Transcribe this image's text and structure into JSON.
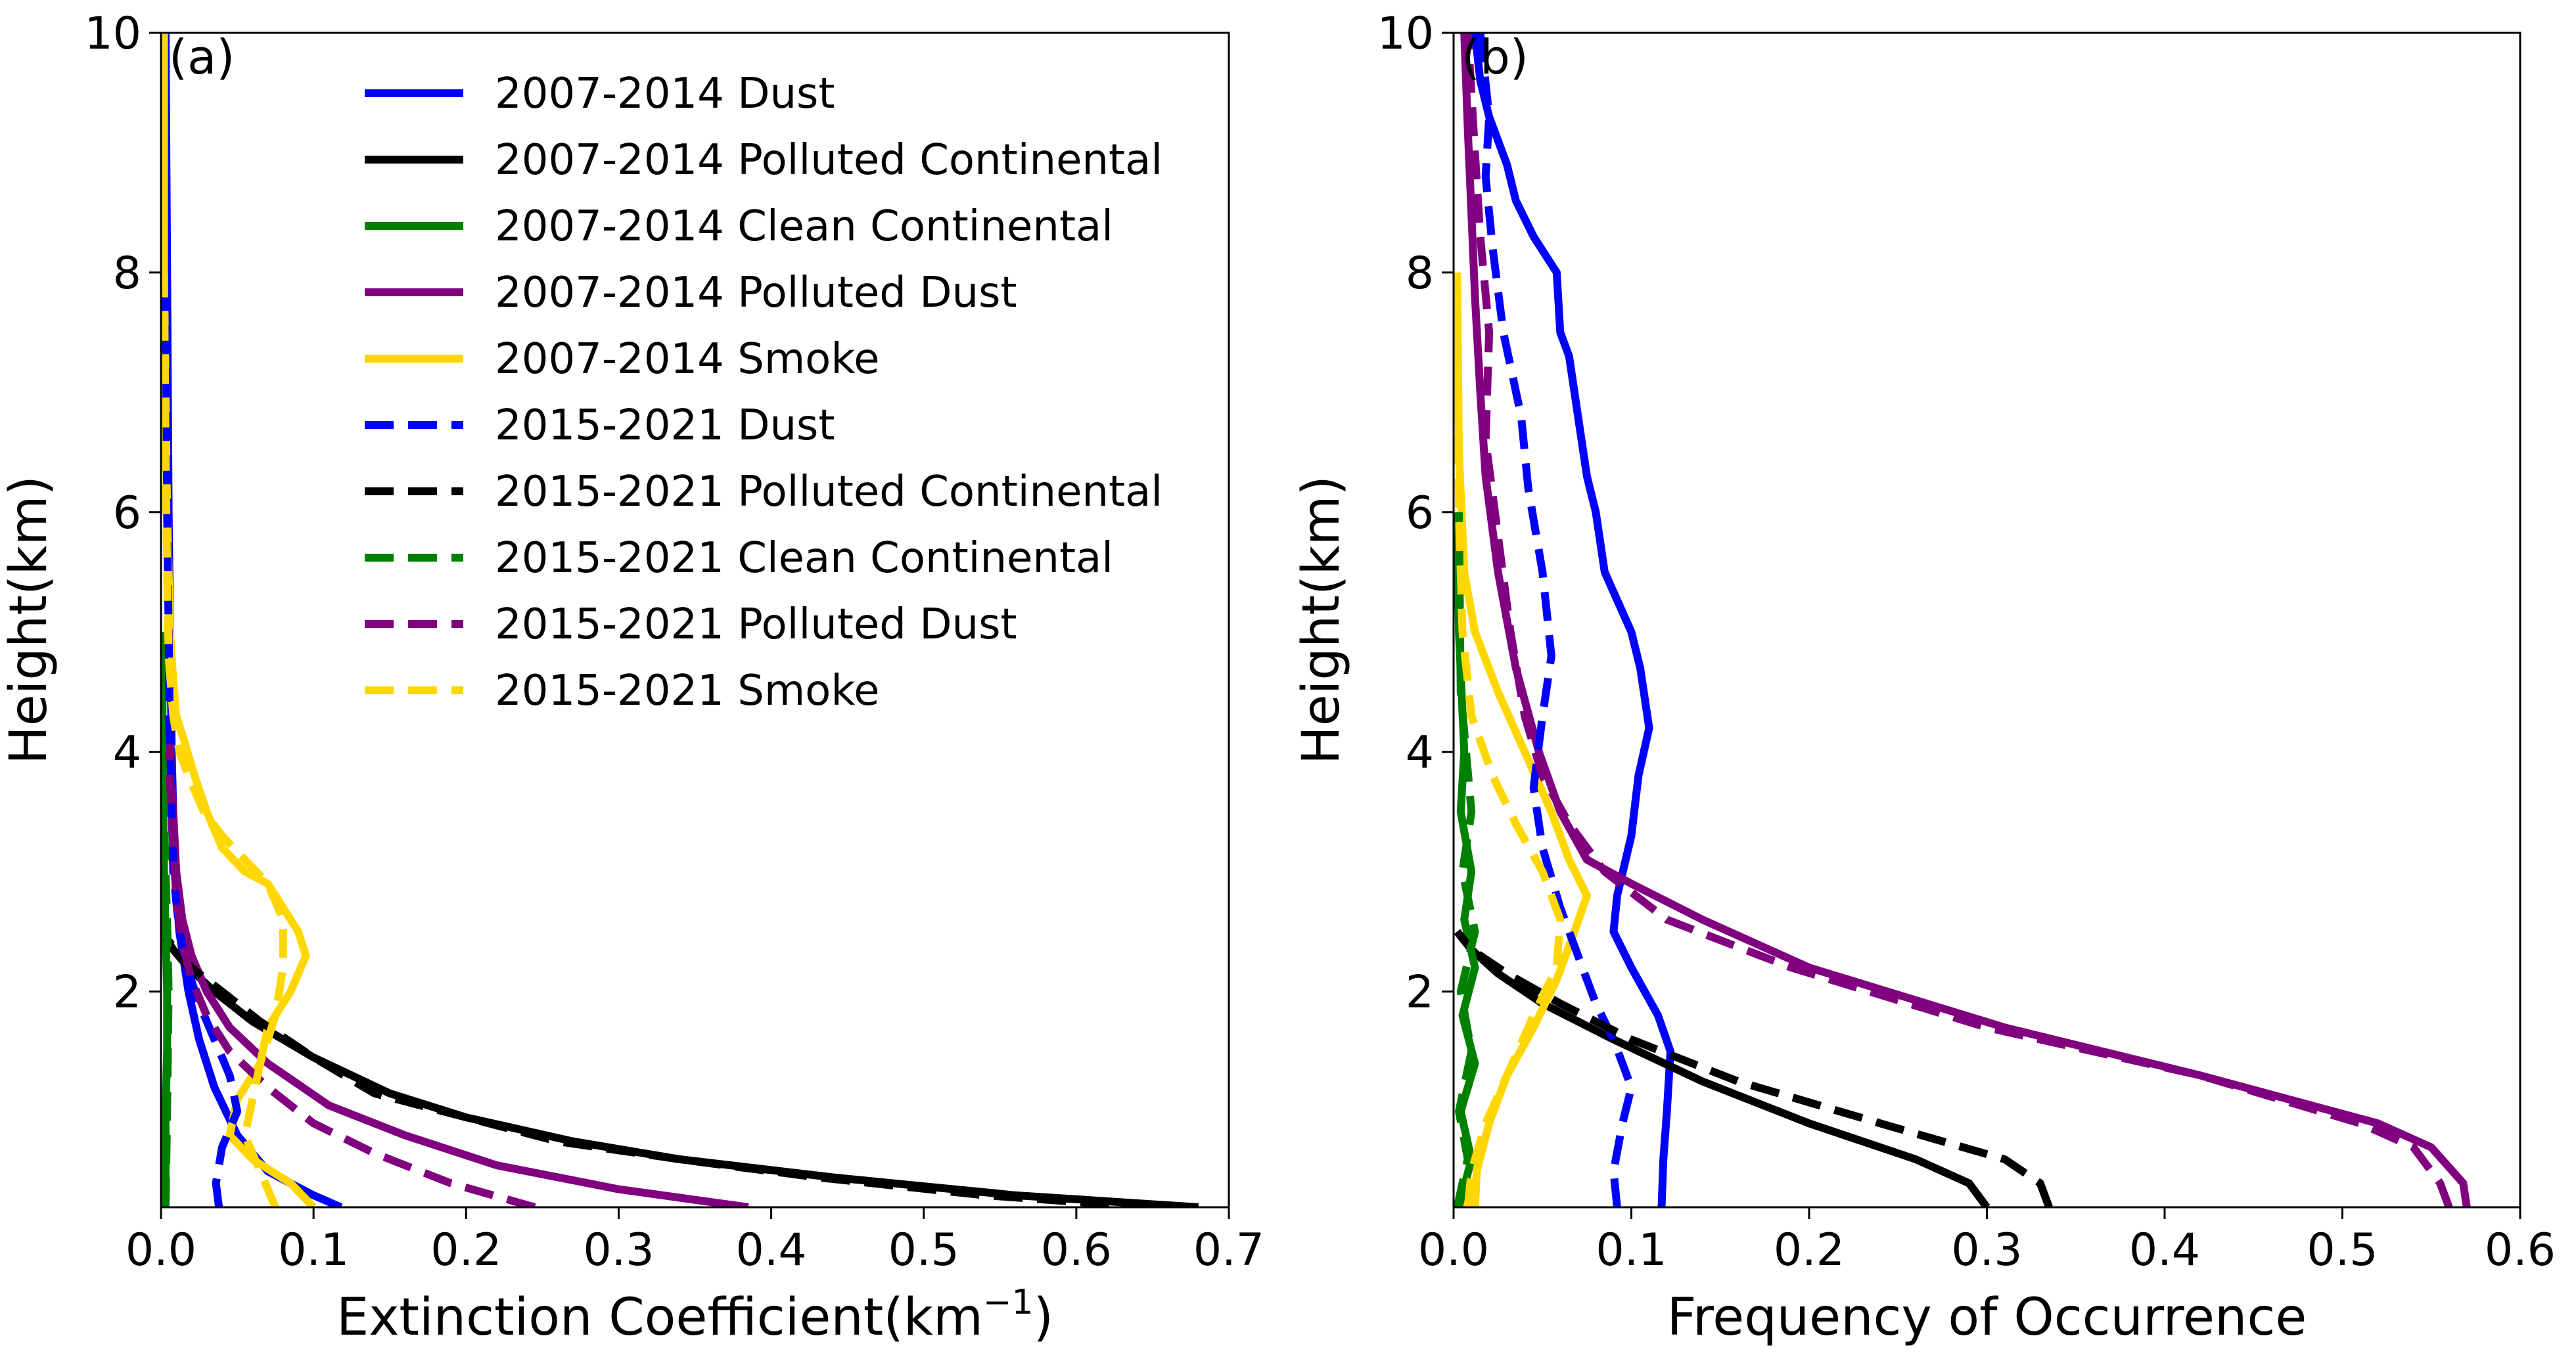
{
  "series_styles": [
    {
      "key": "dust",
      "color": "#0000ff"
    },
    {
      "key": "pc",
      "color": "#000000"
    },
    {
      "key": "cc",
      "color": "#008000"
    },
    {
      "key": "pd",
      "color": "#800080"
    },
    {
      "key": "smoke",
      "color": "#ffd700"
    }
  ],
  "legend": [
    {
      "label": "2007-2014 Dust",
      "color": "#0000ff",
      "dashed": false
    },
    {
      "label": "2007-2014 Polluted Continental",
      "color": "#000000",
      "dashed": false
    },
    {
      "label": "2007-2014 Clean Continental",
      "color": "#008000",
      "dashed": false
    },
    {
      "label": "2007-2014 Polluted Dust",
      "color": "#800080",
      "dashed": false
    },
    {
      "label": "2007-2014 Smoke",
      "color": "#ffd700",
      "dashed": false
    },
    {
      "label": "2015-2021 Dust",
      "color": "#0000ff",
      "dashed": true
    },
    {
      "label": "2015-2021 Polluted Continental",
      "color": "#000000",
      "dashed": true
    },
    {
      "label": "2015-2021 Clean Continental",
      "color": "#008000",
      "dashed": true
    },
    {
      "label": "2015-2021 Polluted Dust",
      "color": "#800080",
      "dashed": true
    },
    {
      "label": "2015-2021 Smoke",
      "color": "#ffd700",
      "dashed": true
    }
  ],
  "chart_data": [
    {
      "type": "line",
      "panel_label": "(a)",
      "xlabel_prefix": "Extinction Coefficient(km",
      "xlabel_exp": "−1",
      "xlabel_suffix": ")",
      "ylabel": "Height(km)",
      "xlim": [
        0,
        0.7
      ],
      "ylim": [
        0.2,
        10
      ],
      "xticks": [
        0,
        0.1,
        0.2,
        0.3,
        0.4,
        0.5,
        0.6,
        0.7
      ],
      "xtick_labels": [
        "0.0",
        "0.1",
        "0.2",
        "0.3",
        "0.4",
        "0.5",
        "0.6",
        "0.7"
      ],
      "yticks": [
        2,
        4,
        6,
        8,
        10
      ],
      "ytick_labels": [
        "2",
        "4",
        "6",
        "8",
        "10"
      ],
      "series": [
        {
          "name": "2007-2014 Dust",
          "color": "#0000ff",
          "dashed": false,
          "x": [
            0.118,
            0.1,
            0.07,
            0.05,
            0.035,
            0.025,
            0.018,
            0.012,
            0.009,
            0.007,
            0.006,
            0.005,
            0.004,
            0.003
          ],
          "y": [
            0.2,
            0.3,
            0.5,
            0.8,
            1.2,
            1.6,
            2.0,
            2.5,
            3.0,
            4.0,
            5.0,
            6.0,
            8.0,
            10.0
          ]
        },
        {
          "name": "2007-2014 Polluted Continental",
          "color": "#000000",
          "dashed": false,
          "x": [
            0.68,
            0.56,
            0.44,
            0.34,
            0.27,
            0.2,
            0.15,
            0.1,
            0.06,
            0.035,
            0.018,
            0.008,
            0.003
          ],
          "y": [
            0.2,
            0.3,
            0.45,
            0.6,
            0.75,
            0.95,
            1.15,
            1.45,
            1.75,
            2.0,
            2.2,
            2.35,
            2.45
          ]
        },
        {
          "name": "2007-2014 Clean Continental",
          "color": "#008000",
          "dashed": false,
          "x": [
            0.003,
            0.003,
            0.004,
            0.004,
            0.003,
            0.002,
            0.001,
            0.001
          ],
          "y": [
            0.2,
            1.0,
            1.5,
            2.0,
            2.5,
            3.0,
            4.0,
            5.0
          ]
        },
        {
          "name": "2007-2014 Polluted Dust",
          "color": "#800080",
          "dashed": false,
          "x": [
            0.385,
            0.3,
            0.22,
            0.16,
            0.11,
            0.07,
            0.045,
            0.03,
            0.02,
            0.014,
            0.01,
            0.008,
            0.005
          ],
          "y": [
            0.2,
            0.35,
            0.55,
            0.8,
            1.05,
            1.4,
            1.7,
            2.0,
            2.3,
            2.6,
            3.0,
            3.5,
            4.3
          ]
        },
        {
          "name": "2007-2014 Smoke",
          "color": "#ffd700",
          "dashed": false,
          "x": [
            0.1,
            0.085,
            0.06,
            0.045,
            0.05,
            0.065,
            0.07,
            0.085,
            0.095,
            0.09,
            0.08,
            0.07,
            0.055,
            0.04,
            0.03,
            0.022,
            0.015,
            0.01,
            0.008,
            0.006,
            0.005,
            0.004,
            0.003,
            0.002,
            0.002
          ],
          "y": [
            0.2,
            0.4,
            0.6,
            0.8,
            1.1,
            1.4,
            1.7,
            2.0,
            2.3,
            2.5,
            2.7,
            2.9,
            3.0,
            3.2,
            3.5,
            3.8,
            4.1,
            4.3,
            4.6,
            5.0,
            5.5,
            6.0,
            7.0,
            8.0,
            10.0
          ]
        },
        {
          "name": "2015-2021 Dust",
          "color": "#0000ff",
          "dashed": true,
          "x": [
            0.038,
            0.036,
            0.04,
            0.05,
            0.045,
            0.035,
            0.025,
            0.017,
            0.012,
            0.008,
            0.006,
            0.005,
            0.004,
            0.003
          ],
          "y": [
            0.2,
            0.4,
            0.7,
            1.0,
            1.3,
            1.6,
            1.9,
            2.2,
            2.5,
            3.0,
            4.0,
            5.0,
            6.0,
            8.0
          ]
        },
        {
          "name": "2015-2021 Polluted Continental",
          "color": "#000000",
          "dashed": true,
          "x": [
            0.65,
            0.54,
            0.43,
            0.34,
            0.26,
            0.2,
            0.14,
            0.1,
            0.065,
            0.04,
            0.02,
            0.01,
            0.003
          ],
          "y": [
            0.2,
            0.3,
            0.45,
            0.6,
            0.75,
            0.95,
            1.15,
            1.45,
            1.75,
            2.0,
            2.2,
            2.35,
            2.45
          ]
        },
        {
          "name": "2015-2021 Clean Continental",
          "color": "#008000",
          "dashed": true,
          "x": [
            0.003,
            0.004,
            0.005,
            0.004,
            0.003,
            0.002,
            0.001
          ],
          "y": [
            0.2,
            1.0,
            2.0,
            2.6,
            3.0,
            3.5,
            4.0
          ]
        },
        {
          "name": "2015-2021 Polluted Dust",
          "color": "#800080",
          "dashed": true,
          "x": [
            0.245,
            0.19,
            0.14,
            0.1,
            0.07,
            0.045,
            0.03,
            0.02,
            0.014,
            0.01,
            0.008,
            0.005
          ],
          "y": [
            0.2,
            0.4,
            0.65,
            0.9,
            1.2,
            1.5,
            1.8,
            2.1,
            2.4,
            2.8,
            3.2,
            4.0
          ]
        },
        {
          "name": "2015-2021 Smoke",
          "color": "#ffd700",
          "dashed": true,
          "x": [
            0.075,
            0.065,
            0.055,
            0.06,
            0.065,
            0.075,
            0.08,
            0.08,
            0.07,
            0.055,
            0.04,
            0.028,
            0.018,
            0.012,
            0.008,
            0.005,
            0.004,
            0.003,
            0.002
          ],
          "y": [
            0.2,
            0.5,
            0.8,
            1.1,
            1.4,
            1.8,
            2.2,
            2.6,
            2.9,
            3.1,
            3.3,
            3.5,
            3.8,
            4.0,
            4.3,
            4.8,
            5.5,
            6.5,
            8.0
          ]
        }
      ]
    },
    {
      "type": "line",
      "panel_label": "(b)",
      "xlabel": "Frequency of Occurrence",
      "ylabel": "Height(km)",
      "xlim": [
        0,
        0.6
      ],
      "ylim": [
        0.2,
        10
      ],
      "xticks": [
        0,
        0.1,
        0.2,
        0.3,
        0.4,
        0.5,
        0.6
      ],
      "xtick_labels": [
        "0.0",
        "0.1",
        "0.2",
        "0.3",
        "0.4",
        "0.5",
        "0.6"
      ],
      "yticks": [
        2,
        4,
        6,
        8,
        10
      ],
      "ytick_labels": [
        "2",
        "4",
        "6",
        "8",
        "10"
      ],
      "series": [
        {
          "name": "2007-2014 Dust",
          "color": "#0000ff",
          "dashed": false,
          "x": [
            0.117,
            0.118,
            0.12,
            0.122,
            0.115,
            0.1,
            0.09,
            0.092,
            0.1,
            0.104,
            0.11,
            0.105,
            0.1,
            0.085,
            0.08,
            0.075,
            0.07,
            0.065,
            0.06,
            0.058,
            0.045,
            0.035,
            0.03,
            0.02,
            0.015,
            0.012
          ],
          "y": [
            0.2,
            0.6,
            1.0,
            1.5,
            1.8,
            2.2,
            2.5,
            2.8,
            3.3,
            3.8,
            4.2,
            4.7,
            5.0,
            5.5,
            6.0,
            6.3,
            6.8,
            7.3,
            7.5,
            8.0,
            8.3,
            8.6,
            8.9,
            9.3,
            9.6,
            10.0
          ]
        },
        {
          "name": "2007-2014 Polluted Continental",
          "color": "#000000",
          "dashed": false,
          "x": [
            0.3,
            0.29,
            0.26,
            0.2,
            0.14,
            0.09,
            0.05,
            0.025,
            0.01,
            0.002
          ],
          "y": [
            0.2,
            0.4,
            0.6,
            0.9,
            1.25,
            1.6,
            1.9,
            2.15,
            2.35,
            2.5
          ]
        },
        {
          "name": "2007-2014 Clean Continental",
          "color": "#008000",
          "dashed": false,
          "x": [
            0.003,
            0.01,
            0.004,
            0.012,
            0.005,
            0.012,
            0.006,
            0.01,
            0.004,
            0.006,
            0.003,
            0.002
          ],
          "y": [
            0.2,
            0.6,
            1.0,
            1.4,
            1.8,
            2.2,
            2.6,
            3.0,
            3.5,
            4.0,
            5.0,
            6.0
          ]
        },
        {
          "name": "2007-2014 Polluted Dust",
          "color": "#800080",
          "dashed": false,
          "x": [
            0.57,
            0.568,
            0.55,
            0.52,
            0.42,
            0.31,
            0.2,
            0.14,
            0.1,
            0.075,
            0.06,
            0.048,
            0.035,
            0.025,
            0.018,
            0.015,
            0.012,
            0.01,
            0.008,
            0.006
          ],
          "y": [
            0.2,
            0.4,
            0.7,
            0.9,
            1.3,
            1.7,
            2.2,
            2.6,
            2.9,
            3.1,
            3.5,
            4.0,
            4.7,
            5.5,
            6.3,
            7.0,
            7.8,
            8.5,
            9.2,
            10.0
          ]
        },
        {
          "name": "2007-2014 Smoke",
          "color": "#ffd700",
          "dashed": false,
          "x": [
            0.012,
            0.013,
            0.02,
            0.03,
            0.045,
            0.058,
            0.068,
            0.075,
            0.065,
            0.055,
            0.04,
            0.025,
            0.012,
            0.006,
            0.003,
            0.002
          ],
          "y": [
            0.2,
            0.5,
            0.9,
            1.3,
            1.7,
            2.1,
            2.5,
            2.8,
            3.1,
            3.5,
            4.0,
            4.5,
            5.0,
            5.5,
            6.5,
            8.0
          ]
        },
        {
          "name": "2015-2021 Dust",
          "color": "#0000ff",
          "dashed": true,
          "x": [
            0.092,
            0.09,
            0.095,
            0.1,
            0.09,
            0.08,
            0.07,
            0.06,
            0.05,
            0.045,
            0.05,
            0.055,
            0.05,
            0.042,
            0.038,
            0.028,
            0.022,
            0.018,
            0.02,
            0.015
          ],
          "y": [
            0.2,
            0.5,
            0.9,
            1.2,
            1.6,
            1.9,
            2.3,
            2.7,
            3.2,
            3.7,
            4.3,
            4.8,
            5.5,
            6.2,
            6.8,
            7.5,
            8.2,
            8.8,
            9.3,
            10.0
          ]
        },
        {
          "name": "2015-2021 Polluted Continental",
          "color": "#000000",
          "dashed": true,
          "x": [
            0.335,
            0.33,
            0.31,
            0.24,
            0.16,
            0.1,
            0.06,
            0.03,
            0.01,
            0.002
          ],
          "y": [
            0.2,
            0.4,
            0.6,
            0.9,
            1.25,
            1.6,
            1.9,
            2.15,
            2.35,
            2.5
          ]
        },
        {
          "name": "2015-2021 Clean Continental",
          "color": "#008000",
          "dashed": true,
          "x": [
            0.002,
            0.008,
            0.003,
            0.01,
            0.004,
            0.012,
            0.005,
            0.01,
            0.004,
            0.003
          ],
          "y": [
            0.2,
            0.6,
            1.0,
            1.5,
            2.0,
            2.5,
            3.0,
            3.5,
            4.5,
            6.0
          ]
        },
        {
          "name": "2015-2021 Polluted Dust",
          "color": "#800080",
          "dashed": true,
          "x": [
            0.56,
            0.555,
            0.54,
            0.51,
            0.42,
            0.3,
            0.19,
            0.12,
            0.085,
            0.065,
            0.05,
            0.04,
            0.032,
            0.025,
            0.018,
            0.02,
            0.015,
            0.012,
            0.008
          ],
          "y": [
            0.2,
            0.4,
            0.7,
            0.9,
            1.3,
            1.7,
            2.2,
            2.6,
            3.0,
            3.4,
            3.8,
            4.3,
            5.0,
            5.8,
            6.6,
            7.5,
            8.3,
            9.0,
            10.0
          ]
        },
        {
          "name": "2015-2021 Smoke",
          "color": "#ffd700",
          "dashed": true,
          "x": [
            0.008,
            0.01,
            0.018,
            0.03,
            0.045,
            0.058,
            0.06,
            0.05,
            0.035,
            0.022,
            0.01,
            0.005,
            0.003,
            0.002
          ],
          "y": [
            0.2,
            0.5,
            0.9,
            1.3,
            1.8,
            2.2,
            2.6,
            3.0,
            3.4,
            3.8,
            4.3,
            5.0,
            6.0,
            8.0
          ]
        }
      ]
    }
  ]
}
